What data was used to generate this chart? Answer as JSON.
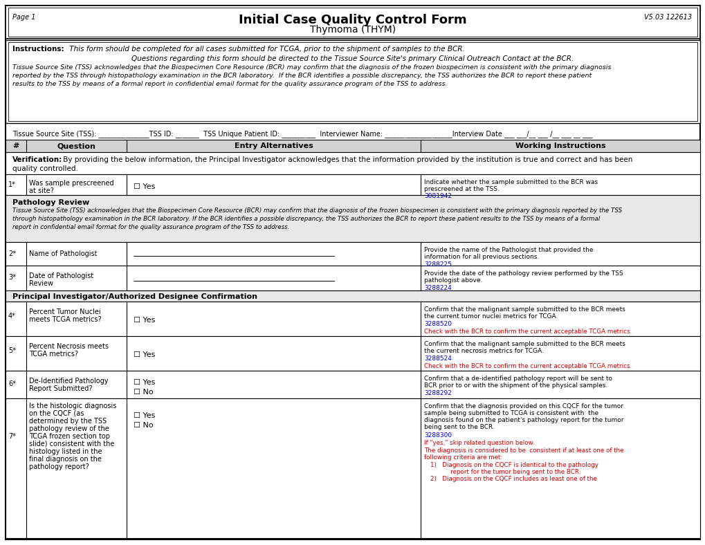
{
  "title_main": "Initial Case Quality Control Form",
  "title_sub": "Thymoma (THYM)",
  "page_label": "Page 1",
  "version_label": "V5.03 122613",
  "instructions_bold": "Instructions:",
  "instructions_line1": " This form should be completed for all cases submitted for TCGA, prior to the shipment of samples to the BCR.",
  "instructions_line2": "Questions regarding this form should be directed to the Tissue Source Site's primary Clinical Outreach Contact at the BCR.",
  "instructions_body": "Tissue Source Site (TSS) acknowledges that the Biospecimen Core Resource (BCR) may confirm that the diagnosis of the frozen biospecimen is consistent with the primary diagnosis\nreported by the TSS through histopathology examination in the BCR laboratory.  If the BCR identifies a possible discrepancy, the TSS authorizes the BCR to report these patient\nresults to the TSS by means of a formal report in confidential email format for the quality assurance program of the TSS to address.",
  "tss_line": "Tissue Source Site (TSS): _______________TSS ID: _______  TSS Unique Patient ID: __________  Interviewer Name: ____________________Interview Date ___ ___/__ ___ /__ ___ __ ___",
  "col_headers": [
    "#",
    "Question",
    "Entry Alternatives",
    "Working Instructions"
  ],
  "verification_bold": "Verification:",
  "verification_text1": " By providing the below information, the Principal Investigator acknowledges that the information provided by the institution is true and correct and has been",
  "verification_text2": "quality controlled.",
  "row1_num": "1*",
  "row1_q1": "Was sample prescreened",
  "row1_q2": "at site?",
  "row1_entry": "☐ Yes",
  "row1_instr1": "Indicate whether the sample submitted to the BCR was",
  "row1_instr2": "prescreened at the TSS.",
  "row1_link": "3081942",
  "pathology_header": "Pathology Review",
  "pathology_body1": "Tissue Source Site (TSS) acknowledges that the Biospecimen Core Resource (BCR) may confirm that the diagnosis of the frozen biospecimen is consistent with the primary diagnosis reported by the TSS",
  "pathology_body2": "through histopathology examination in the BCR laboratory. If the BCR identifies a possible discrepancy, the TSS authorizes the BCR to report these patient results to the TSS by means of a formal",
  "pathology_body3": "report in confidential email format for the quality assurance program of the TSS to address.",
  "row2_num": "2*",
  "row2_q": "Name of Pathologist",
  "row2_instr1": "Provide the name of the Pathologist that provided the",
  "row2_instr2": "information for all previous sections.",
  "row2_link": "3288225",
  "row3_num": "3*",
  "row3_q1": "Date of Pathologist",
  "row3_q2": "Review",
  "row3_instr1": "Provide the date of the pathology review performed by the TSS",
  "row3_instr2": "pathologist above.",
  "row3_link": "3288224",
  "pi_header": "Principal Investigator/Authorized Designee Confirmation",
  "row4_num": "4*",
  "row4_q1": "Percent Tumor Nuclei",
  "row4_q2": "meets TCGA metrics?",
  "row4_entry": "☐ Yes",
  "row4_instr1": "Confirm that the malignant sample submitted to the BCR meets",
  "row4_instr2": "the current tumor nuclei metrics for TCGA.",
  "row4_link": "3288520",
  "row4_red": "Check with the BCR to confirm the current acceptable TCGA metrics.",
  "row5_num": "5*",
  "row5_q1": "Percent Necrosis meets",
  "row5_q2": "TCGA metrics?",
  "row5_entry": "☐ Yes",
  "row5_instr1": "Confirm that the malignant sample submitted to the BCR meets",
  "row5_instr2": "the current necrosis metrics for TCGA.",
  "row5_link": "3288524",
  "row5_red": "Check with the BCR to confirm the current acceptable TCGA metrics.",
  "row6_num": "6*",
  "row6_q1": "De-Identified Pathology",
  "row6_q2": "Report Submitted?",
  "row6_entry1": "☐ Yes",
  "row6_entry2": "☐ No",
  "row6_instr1": "Confirm that a de-identified pathology report will be sent to",
  "row6_instr2": "BCR prior to or with the shipment of the physical samples.",
  "row6_link": "3288292",
  "row7_num": "7*",
  "row7_q": [
    "Is the histologic diagnosis",
    "on the CQCF (as",
    "determined by the TSS",
    "pathology review of the",
    "TCGA frozen section top",
    "slide) consistent with the",
    "histology listed in the",
    "final diagnosis on the",
    "pathology report?"
  ],
  "row7_entry1": "☐ Yes",
  "row7_entry2": "☐ No",
  "row7_instr1": "Confirm that the diagnosis provided on this CQCF for the tumor",
  "row7_instr2": "sample being submitted to TCGA is consistent with  the",
  "row7_instr3": "diagnosis found on the patient's pathology report for the tumor",
  "row7_instr4": "being sent to the BCR.",
  "row7_link": "3288300",
  "row7_red1": "If \"yes,\" skip related question below.",
  "row7_red2": "The diagnosis is considered to be  consistent if at least one of the",
  "row7_red3": "following criteria are met:",
  "row7_red4": "1)   Diagnosis on the CQCF is identical to the pathology",
  "row7_red5": "       report for the tumor being sent to the BCR.",
  "row7_red6": "2)   Diagnosis on the CQCF includes as least one of the",
  "link_color": "#0000CD",
  "red_color": "#CC0000",
  "bg_color": "#FFFFFF",
  "header_bg": "#D3D3D3",
  "section_bg": "#E8E8E8",
  "border_color": "#000000"
}
